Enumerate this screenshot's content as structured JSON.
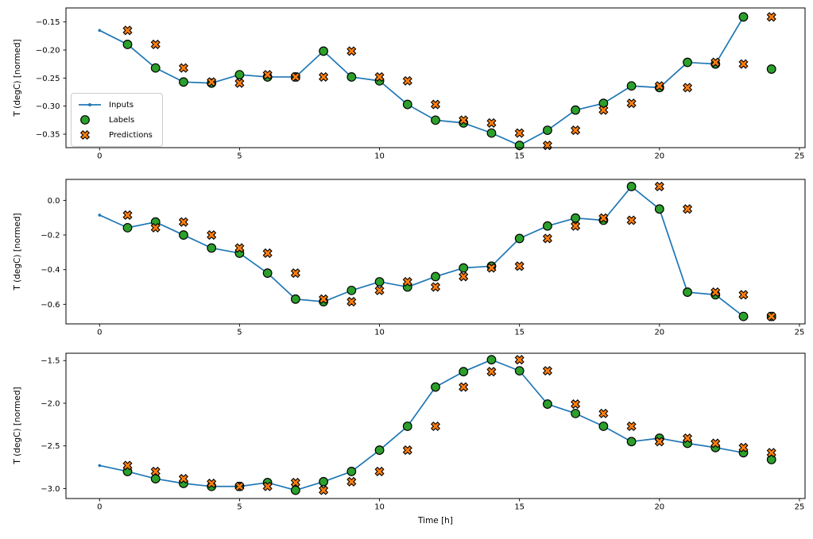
{
  "figure": {
    "background": "#ffffff",
    "xlabel": "Time [h]"
  },
  "legend": {
    "items": [
      {
        "label": "Inputs",
        "swatch": "line-with-dot",
        "color": "#1f77b4"
      },
      {
        "label": "Labels",
        "swatch": "circle",
        "color": "#2ca02c"
      },
      {
        "label": "Predictions",
        "swatch": "x-marker",
        "color": "#ff7f0e"
      }
    ]
  },
  "chart_data": [
    {
      "type": "line",
      "title": "",
      "ylabel": "T (degC) [normed]",
      "xlabel": "",
      "grid": false,
      "legend_position": "center left",
      "xlim": [
        -1.2,
        25.2
      ],
      "ylim": [
        -0.374,
        -0.125
      ],
      "xticks": {
        "values": [
          0,
          5,
          10,
          15,
          20,
          25
        ],
        "labels": [
          "0",
          "5",
          "10",
          "15",
          "20",
          "25"
        ]
      },
      "yticks": {
        "values": [
          -0.15,
          -0.2,
          -0.25,
          -0.3,
          -0.35
        ],
        "labels": [
          "−0.15",
          "−0.20",
          "−0.25",
          "−0.30",
          "−0.35"
        ]
      },
      "series": [
        {
          "name": "Inputs",
          "kind": "line",
          "marker": "dot",
          "color": "#1f77b4",
          "x": [
            0,
            1,
            2,
            3,
            4,
            5,
            6,
            7,
            8,
            9,
            10,
            11,
            12,
            13,
            14,
            15,
            16,
            17,
            18,
            19,
            20,
            21,
            22,
            23
          ],
          "y": [
            -0.165,
            -0.19,
            -0.232,
            -0.257,
            -0.259,
            -0.244,
            -0.248,
            -0.248,
            -0.202,
            -0.248,
            -0.255,
            -0.297,
            -0.325,
            -0.33,
            -0.348,
            -0.37,
            -0.343,
            -0.307,
            -0.295,
            -0.264,
            -0.267,
            -0.222,
            -0.225,
            -0.141
          ]
        },
        {
          "name": "Labels",
          "kind": "scatter",
          "marker": "circle",
          "color": "#2ca02c",
          "edge_color": "#000000",
          "x": [
            1,
            2,
            3,
            4,
            5,
            6,
            7,
            8,
            9,
            10,
            11,
            12,
            13,
            14,
            15,
            16,
            17,
            18,
            19,
            20,
            21,
            22,
            23,
            24
          ],
          "y": [
            -0.19,
            -0.232,
            -0.257,
            -0.259,
            -0.244,
            -0.248,
            -0.248,
            -0.202,
            -0.248,
            -0.255,
            -0.297,
            -0.325,
            -0.33,
            -0.348,
            -0.37,
            -0.343,
            -0.307,
            -0.295,
            -0.264,
            -0.267,
            -0.222,
            -0.225,
            -0.141,
            -0.234
          ]
        },
        {
          "name": "Predictions",
          "kind": "scatter",
          "marker": "X",
          "color": "#ff7f0e",
          "edge_color": "#000000",
          "x": [
            1,
            2,
            3,
            4,
            5,
            6,
            7,
            8,
            9,
            10,
            11,
            12,
            13,
            14,
            15,
            16,
            17,
            18,
            19,
            20,
            21,
            22,
            23,
            24
          ],
          "y": [
            -0.165,
            -0.19,
            -0.232,
            -0.257,
            -0.259,
            -0.244,
            -0.248,
            -0.248,
            -0.202,
            -0.248,
            -0.255,
            -0.297,
            -0.325,
            -0.33,
            -0.348,
            -0.37,
            -0.343,
            -0.307,
            -0.295,
            -0.264,
            -0.267,
            -0.222,
            -0.225,
            -0.141
          ]
        }
      ]
    },
    {
      "type": "line",
      "title": "",
      "ylabel": "T (degC) [normed]",
      "xlabel": "",
      "grid": false,
      "legend_position": "none",
      "xlim": [
        -1.2,
        25.2
      ],
      "ylim": [
        -0.713,
        0.121
      ],
      "xticks": {
        "values": [
          0,
          5,
          10,
          15,
          20,
          25
        ],
        "labels": [
          "0",
          "5",
          "10",
          "15",
          "20",
          "25"
        ]
      },
      "yticks": {
        "values": [
          0.0,
          -0.2,
          -0.4,
          -0.6
        ],
        "labels": [
          "0.0",
          "−0.2",
          "−0.4",
          "−0.6"
        ]
      },
      "series": [
        {
          "name": "Inputs",
          "kind": "line",
          "marker": "dot",
          "color": "#1f77b4",
          "x": [
            0,
            1,
            2,
            3,
            4,
            5,
            6,
            7,
            8,
            9,
            10,
            11,
            12,
            13,
            14,
            15,
            16,
            17,
            18,
            19,
            20,
            21,
            22,
            23
          ],
          "y": [
            -0.085,
            -0.158,
            -0.125,
            -0.2,
            -0.275,
            -0.305,
            -0.42,
            -0.57,
            -0.585,
            -0.52,
            -0.47,
            -0.5,
            -0.44,
            -0.39,
            -0.38,
            -0.22,
            -0.148,
            -0.102,
            -0.115,
            0.08,
            -0.05,
            -0.53,
            -0.545,
            -0.67
          ]
        },
        {
          "name": "Labels",
          "kind": "scatter",
          "marker": "circle",
          "color": "#2ca02c",
          "edge_color": "#000000",
          "x": [
            1,
            2,
            3,
            4,
            5,
            6,
            7,
            8,
            9,
            10,
            11,
            12,
            13,
            14,
            15,
            16,
            17,
            18,
            19,
            20,
            21,
            22,
            23,
            24
          ],
          "y": [
            -0.158,
            -0.125,
            -0.2,
            -0.275,
            -0.305,
            -0.42,
            -0.57,
            -0.585,
            -0.52,
            -0.47,
            -0.5,
            -0.44,
            -0.39,
            -0.38,
            -0.22,
            -0.148,
            -0.102,
            -0.115,
            0.08,
            -0.05,
            -0.53,
            -0.545,
            -0.67,
            -0.67
          ]
        },
        {
          "name": "Predictions",
          "kind": "scatter",
          "marker": "X",
          "color": "#ff7f0e",
          "edge_color": "#000000",
          "x": [
            1,
            2,
            3,
            4,
            5,
            6,
            7,
            8,
            9,
            10,
            11,
            12,
            13,
            14,
            15,
            16,
            17,
            18,
            19,
            20,
            21,
            22,
            23,
            24
          ],
          "y": [
            -0.085,
            -0.158,
            -0.125,
            -0.2,
            -0.275,
            -0.305,
            -0.42,
            -0.57,
            -0.585,
            -0.52,
            -0.47,
            -0.5,
            -0.44,
            -0.39,
            -0.38,
            -0.22,
            -0.148,
            -0.102,
            -0.115,
            0.08,
            -0.05,
            -0.53,
            -0.545,
            -0.67
          ]
        }
      ]
    },
    {
      "type": "line",
      "title": "",
      "ylabel": "T (degC) [normed]",
      "xlabel": "Time [h]",
      "grid": false,
      "legend_position": "none",
      "xlim": [
        -1.2,
        25.2
      ],
      "ylim": [
        -3.117,
        -1.414
      ],
      "xticks": {
        "values": [
          0,
          5,
          10,
          15,
          20,
          25
        ],
        "labels": [
          "0",
          "5",
          "10",
          "15",
          "20",
          "25"
        ]
      },
      "yticks": {
        "values": [
          -1.5,
          -2.0,
          -2.5,
          -3.0
        ],
        "labels": [
          "−1.5",
          "−2.0",
          "−2.5",
          "−3.0"
        ]
      },
      "series": [
        {
          "name": "Inputs",
          "kind": "line",
          "marker": "dot",
          "color": "#1f77b4",
          "x": [
            0,
            1,
            2,
            3,
            4,
            5,
            6,
            7,
            8,
            9,
            10,
            11,
            12,
            13,
            14,
            15,
            16,
            17,
            18,
            19,
            20,
            21,
            22,
            23
          ],
          "y": [
            -2.73,
            -2.8,
            -2.885,
            -2.94,
            -2.975,
            -2.975,
            -2.93,
            -3.02,
            -2.92,
            -2.8,
            -2.55,
            -2.27,
            -1.81,
            -1.63,
            -1.49,
            -1.62,
            -2.01,
            -2.12,
            -2.27,
            -2.45,
            -2.41,
            -2.47,
            -2.52,
            -2.58
          ]
        },
        {
          "name": "Labels",
          "kind": "scatter",
          "marker": "circle",
          "color": "#2ca02c",
          "edge_color": "#000000",
          "x": [
            1,
            2,
            3,
            4,
            5,
            6,
            7,
            8,
            9,
            10,
            11,
            12,
            13,
            14,
            15,
            16,
            17,
            18,
            19,
            20,
            21,
            22,
            23,
            24
          ],
          "y": [
            -2.8,
            -2.885,
            -2.94,
            -2.975,
            -2.975,
            -2.93,
            -3.02,
            -2.92,
            -2.8,
            -2.55,
            -2.27,
            -1.81,
            -1.63,
            -1.49,
            -1.62,
            -2.01,
            -2.12,
            -2.27,
            -2.45,
            -2.41,
            -2.47,
            -2.52,
            -2.58,
            -2.66
          ]
        },
        {
          "name": "Predictions",
          "kind": "scatter",
          "marker": "X",
          "color": "#ff7f0e",
          "edge_color": "#000000",
          "x": [
            1,
            2,
            3,
            4,
            5,
            6,
            7,
            8,
            9,
            10,
            11,
            12,
            13,
            14,
            15,
            16,
            17,
            18,
            19,
            20,
            21,
            22,
            23,
            24
          ],
          "y": [
            -2.73,
            -2.8,
            -2.885,
            -2.94,
            -2.975,
            -2.975,
            -2.93,
            -3.02,
            -2.92,
            -2.8,
            -2.55,
            -2.27,
            -1.81,
            -1.63,
            -1.49,
            -1.62,
            -2.01,
            -2.12,
            -2.27,
            -2.45,
            -2.41,
            -2.47,
            -2.52,
            -2.58
          ]
        }
      ]
    }
  ]
}
